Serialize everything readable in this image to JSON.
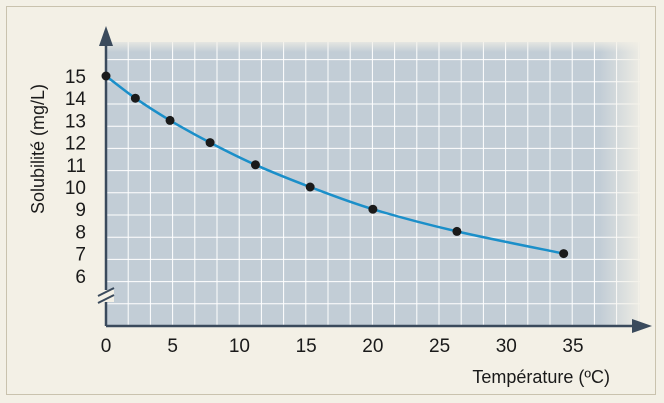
{
  "chart_data": {
    "type": "line",
    "xlabel": "Température (ºC)",
    "ylabel": "Solubilité (mg/L)",
    "x_ticks": [
      "0",
      "5",
      "10",
      "15",
      "20",
      "25",
      "30",
      "35"
    ],
    "y_ticks": [
      "6",
      "7",
      "8",
      "9",
      "10",
      "11",
      "12",
      "13",
      "14",
      "15"
    ],
    "xlim": [
      0,
      40
    ],
    "ylim": [
      5,
      16
    ],
    "y_axis_break": true,
    "grid": true,
    "colors": {
      "line": "#1b8fc9",
      "points": "#1a1a1a",
      "grid_bg": "#c2cdd6",
      "grid_line": "#ffffff",
      "axis": "#3a4a5c"
    },
    "series": [
      {
        "points": [
          {
            "x": 0,
            "y": 15
          },
          {
            "x": 2.2,
            "y": 14
          },
          {
            "x": 4.8,
            "y": 13
          },
          {
            "x": 7.8,
            "y": 12
          },
          {
            "x": 11.2,
            "y": 11
          },
          {
            "x": 15.3,
            "y": 10
          },
          {
            "x": 20,
            "y": 9
          },
          {
            "x": 26.3,
            "y": 8
          },
          {
            "x": 34.3,
            "y": 7
          }
        ]
      }
    ]
  }
}
